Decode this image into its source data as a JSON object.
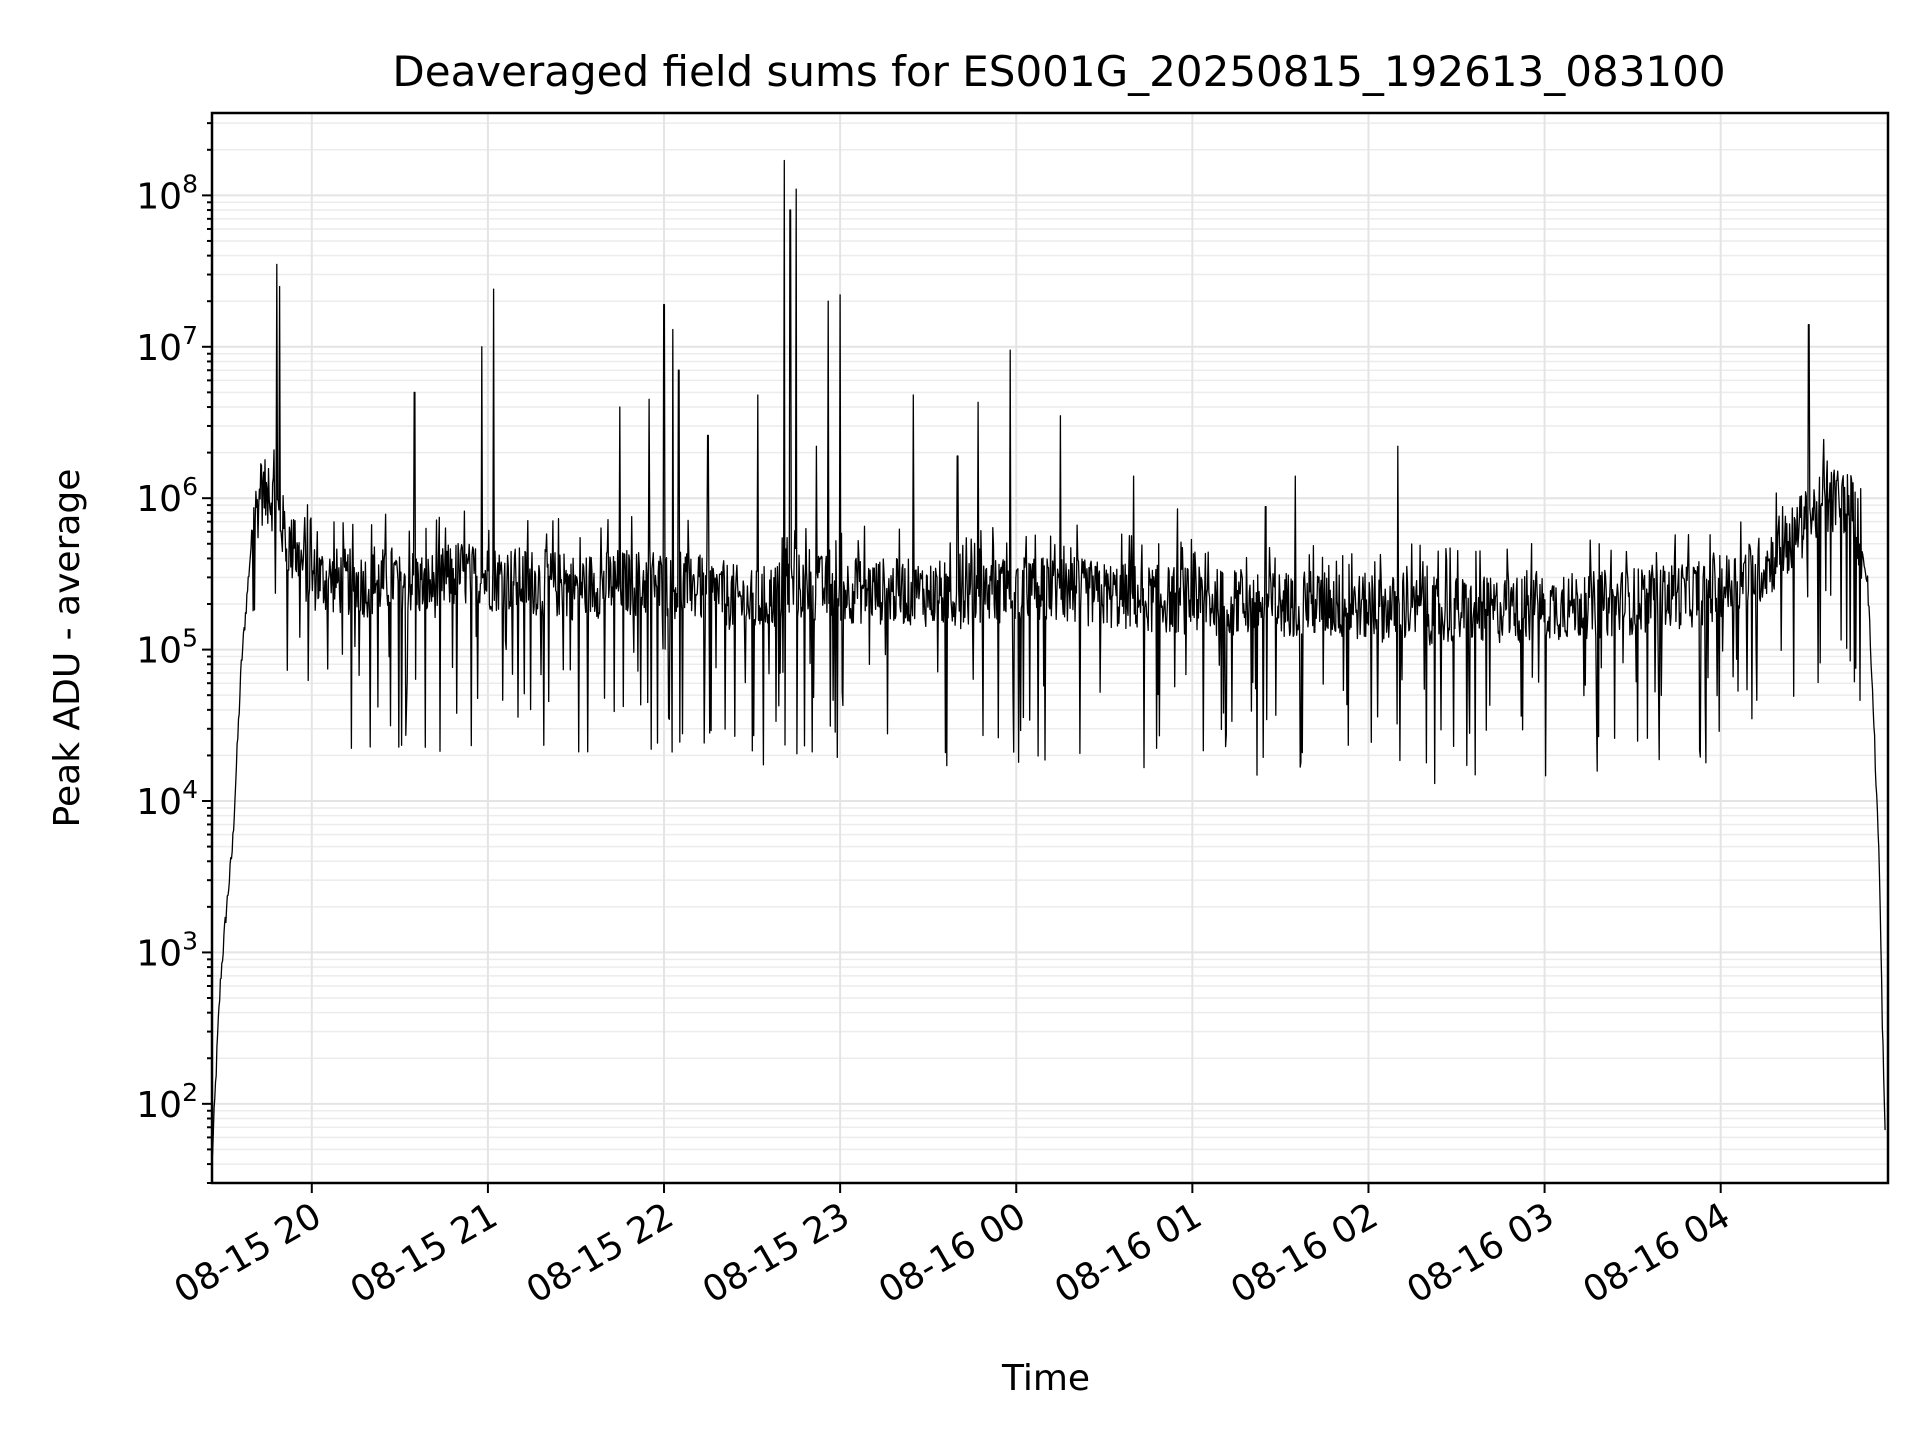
{
  "chart_data": {
    "type": "line",
    "title": "Deaveraged field sums for ES001G_20250815_192613_083100",
    "xlabel": "Time",
    "ylabel": "Peak ADU - average",
    "yscale": "log",
    "ylim": [
      30,
      350000000
    ],
    "xlim": [
      "08-15 19:26",
      "08-16 04:57"
    ],
    "grid": true,
    "legend": "none",
    "line_color": "#000000",
    "x_ticks": [
      "08-15 20",
      "08-15 21",
      "08-15 22",
      "08-15 23",
      "08-16 00",
      "08-16 01",
      "08-16 02",
      "08-16 03",
      "08-16 04"
    ],
    "y_ticks": [
      {
        "base": "10",
        "exp": "2",
        "value": 100
      },
      {
        "base": "10",
        "exp": "3",
        "value": 1000
      },
      {
        "base": "10",
        "exp": "4",
        "value": 10000
      },
      {
        "base": "10",
        "exp": "5",
        "value": 100000
      },
      {
        "base": "10",
        "exp": "6",
        "value": 1000000
      },
      {
        "base": "10",
        "exp": "7",
        "value": 10000000
      },
      {
        "base": "10",
        "exp": "8",
        "value": 100000000
      }
    ],
    "series": [
      {
        "x": [
          "08-15 19:26",
          "08-15 19:28",
          "08-15 19:29",
          "08-15 19:31",
          "08-15 19:33",
          "08-15 19:36",
          "08-15 19:40",
          "08-15 19:43",
          "08-15 19:47",
          "08-15 19:52",
          "08-15 19:55",
          "08-15 20:00",
          "08-15 20:10",
          "08-15 20:20",
          "08-15 20:30",
          "08-15 20:40",
          "08-15 20:50",
          "08-15 21:00",
          "08-15 21:15",
          "08-15 21:30",
          "08-15 21:45",
          "08-15 22:00",
          "08-15 22:15",
          "08-15 22:30",
          "08-15 22:45",
          "08-15 23:00",
          "08-15 23:20",
          "08-15 23:40",
          "08-16 00:00",
          "08-16 00:20",
          "08-16 00:40",
          "08-16 01:00",
          "08-16 01:20",
          "08-16 01:40",
          "08-16 02:00",
          "08-16 02:20",
          "08-16 02:40",
          "08-16 03:00",
          "08-16 03:20",
          "08-16 03:40",
          "08-16 04:00",
          "08-16 04:15",
          "08-16 04:25",
          "08-16 04:33",
          "08-16 04:40",
          "08-16 04:45",
          "08-16 04:50",
          "08-16 04:52",
          "08-16 04:54",
          "08-16 04:55",
          "08-16 04:56"
        ],
        "y": [
          40,
          300,
          700,
          2000,
          5000,
          80000,
          700000,
          1100000,
          1000000,
          500000,
          400000,
          300000,
          280000,
          270000,
          300000,
          260000,
          320000,
          300000,
          280000,
          260000,
          280000,
          270000,
          250000,
          200000,
          260000,
          250000,
          240000,
          230000,
          250000,
          240000,
          220000,
          210000,
          200000,
          200000,
          190000,
          180000,
          180000,
          190000,
          200000,
          220000,
          250000,
          350000,
          550000,
          850000,
          1000000,
          900000,
          300000,
          40000,
          4000,
          400,
          60
        ]
      }
    ],
    "spikes": [
      {
        "x": "08-15 19:48",
        "y": 35000000
      },
      {
        "x": "08-15 19:49",
        "y": 25000000
      },
      {
        "x": "08-15 20:35",
        "y": 5000000
      },
      {
        "x": "08-15 20:58",
        "y": 10000000
      },
      {
        "x": "08-15 21:02",
        "y": 24000000
      },
      {
        "x": "08-15 21:45",
        "y": 4000000
      },
      {
        "x": "08-15 21:55",
        "y": 4500000
      },
      {
        "x": "08-15 22:00",
        "y": 19000000
      },
      {
        "x": "08-15 22:03",
        "y": 13000000
      },
      {
        "x": "08-15 22:05",
        "y": 7000000
      },
      {
        "x": "08-15 22:15",
        "y": 2600000
      },
      {
        "x": "08-15 22:32",
        "y": 4800000
      },
      {
        "x": "08-15 22:41",
        "y": 170000000
      },
      {
        "x": "08-15 22:43",
        "y": 80000000
      },
      {
        "x": "08-15 22:45",
        "y": 110000000
      },
      {
        "x": "08-15 22:52",
        "y": 2200000
      },
      {
        "x": "08-15 22:56",
        "y": 20000000
      },
      {
        "x": "08-15 23:00",
        "y": 22000000
      },
      {
        "x": "08-15 23:25",
        "y": 4800000
      },
      {
        "x": "08-15 23:40",
        "y": 1900000
      },
      {
        "x": "08-15 23:47",
        "y": 4300000
      },
      {
        "x": "08-15 23:58",
        "y": 9500000
      },
      {
        "x": "08-16 00:15",
        "y": 3500000
      },
      {
        "x": "08-16 00:40",
        "y": 1400000
      },
      {
        "x": "08-16 00:55",
        "y": 850000
      },
      {
        "x": "08-16 01:25",
        "y": 880000
      },
      {
        "x": "08-16 01:35",
        "y": 1400000
      },
      {
        "x": "08-16 02:10",
        "y": 2200000
      },
      {
        "x": "08-16 04:30",
        "y": 14000000
      }
    ]
  }
}
